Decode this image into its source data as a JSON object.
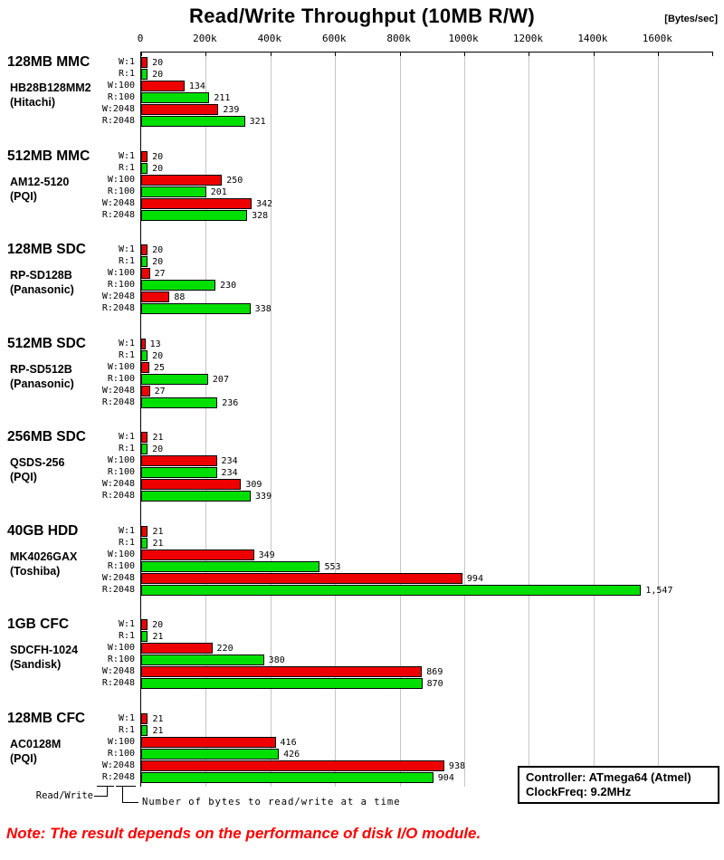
{
  "title": "Read/Write Throughput (10MB R/W)",
  "unit_label": "[Bytes/sec]",
  "legend": {
    "read_write_label": "Read/Write",
    "bytes_label": "Number of bytes to read/write at a time"
  },
  "info_box": {
    "line1": "Controller: ATmega64 (Atmel)",
    "line2": "ClockFreq: 9.2MHz"
  },
  "note": "Note: The result depends on the performance of disk I/O module.",
  "note_color": "#ff0000",
  "chart_data": {
    "type": "bar",
    "orientation": "horizontal",
    "title": "Read/Write Throughput (10MB R/W)",
    "xlabel": "[Bytes/sec]",
    "axis_tick_labels": [
      "0",
      "200k",
      "400k",
      "600k",
      "800k",
      "1000k",
      "1200k",
      "1400k",
      "1600k"
    ],
    "axis_tick_values_k": [
      0,
      200,
      400,
      600,
      800,
      1000,
      1200,
      1400,
      1600
    ],
    "xlim_k": [
      0,
      1770
    ],
    "value_scale_note": "bar labels are in units of 1000 Bytes/sec (k)",
    "grid": true,
    "row_labels": [
      "W:1",
      "R:1",
      "W:100",
      "R:100",
      "W:2048",
      "R:2048"
    ],
    "colors": {
      "write": "#ee0000",
      "read": "#00e000",
      "gridline": "#c6c6c6"
    },
    "groups": [
      {
        "name": "128MB MMC",
        "model": "HB28B128MM2",
        "maker": "(Hitachi)",
        "values_k": [
          20,
          20,
          134,
          211,
          239,
          321
        ],
        "value_labels": [
          "20",
          "20",
          "134",
          "211",
          "239",
          "321"
        ]
      },
      {
        "name": "512MB MMC",
        "model": "AM12-5120",
        "maker": "(PQI)",
        "values_k": [
          20,
          20,
          250,
          201,
          342,
          328
        ],
        "value_labels": [
          "20",
          "20",
          "250",
          "201",
          "342",
          "328"
        ]
      },
      {
        "name": "128MB SDC",
        "model": "RP-SD128B",
        "maker": "(Panasonic)",
        "values_k": [
          20,
          20,
          27,
          230,
          88,
          338
        ],
        "value_labels": [
          "20",
          "20",
          "27",
          "230",
          "88",
          "338"
        ]
      },
      {
        "name": "512MB SDC",
        "model": "RP-SD512B",
        "maker": "(Panasonic)",
        "values_k": [
          13,
          20,
          25,
          207,
          27,
          236
        ],
        "value_labels": [
          "13",
          "20",
          "25",
          "207",
          "27",
          "236"
        ]
      },
      {
        "name": "256MB SDC",
        "model": "QSDS-256",
        "maker": "(PQI)",
        "values_k": [
          21,
          20,
          234,
          234,
          309,
          339
        ],
        "value_labels": [
          "21",
          "20",
          "234",
          "234",
          "309",
          "339"
        ]
      },
      {
        "name": "40GB HDD",
        "model": "MK4026GAX",
        "maker": "(Toshiba)",
        "values_k": [
          21,
          21,
          349,
          553,
          994,
          1547
        ],
        "value_labels": [
          "21",
          "21",
          "349",
          "553",
          "994",
          "1,547"
        ]
      },
      {
        "name": "1GB CFC",
        "model": "SDCFH-1024",
        "maker": "(Sandisk)",
        "values_k": [
          20,
          21,
          220,
          380,
          869,
          870
        ],
        "value_labels": [
          "20",
          "21",
          "220",
          "380",
          "869",
          "870"
        ]
      },
      {
        "name": "128MB CFC",
        "model": "AC0128M",
        "maker": "(PQI)",
        "values_k": [
          21,
          21,
          416,
          426,
          938,
          904
        ],
        "value_labels": [
          "21",
          "21",
          "416",
          "426",
          "938",
          "904"
        ]
      }
    ]
  }
}
